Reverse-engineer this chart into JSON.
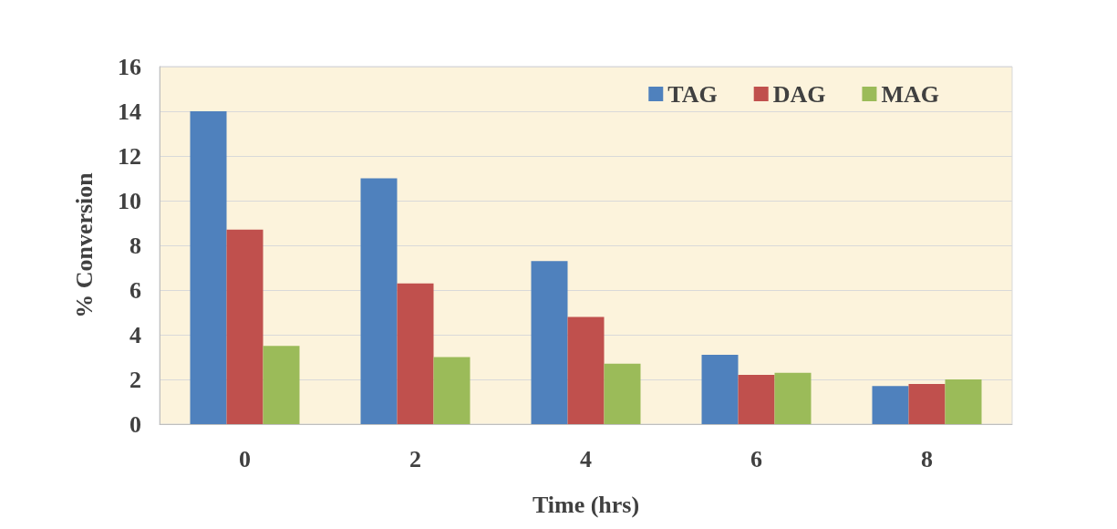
{
  "chart_data": {
    "type": "bar",
    "xlabel": "Time (hrs)",
    "ylabel": "% Conversion",
    "categories": [
      "0",
      "2",
      "4",
      "6",
      "8"
    ],
    "series": [
      {
        "name": "TAG",
        "color": "#4f81bd",
        "values": [
          14.0,
          11.0,
          7.3,
          3.1,
          1.7
        ]
      },
      {
        "name": "DAG",
        "color": "#c0504d",
        "values": [
          8.7,
          6.3,
          4.8,
          2.2,
          1.8
        ]
      },
      {
        "name": "MAG",
        "color": "#9bbb59",
        "values": [
          3.5,
          3.0,
          2.7,
          2.3,
          2.0
        ]
      }
    ],
    "ylim": [
      0,
      16
    ],
    "yticks": [
      0,
      2,
      4,
      6,
      8,
      10,
      12,
      14,
      16
    ],
    "grid": "y",
    "legend": "top right"
  }
}
